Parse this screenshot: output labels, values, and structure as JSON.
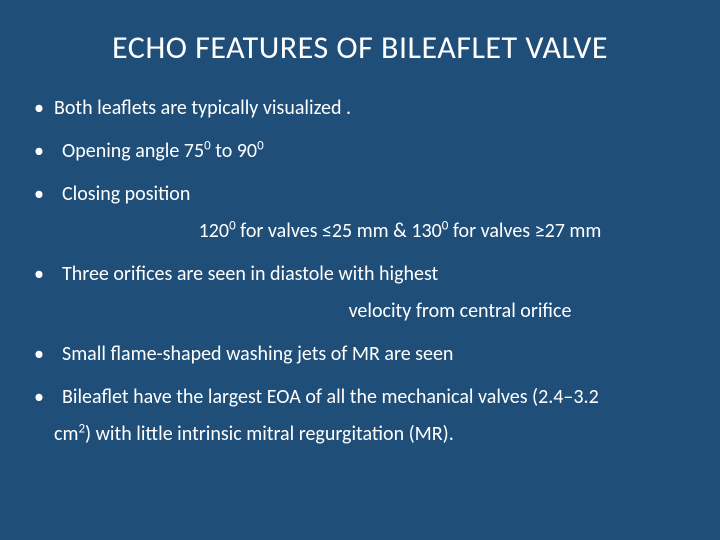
{
  "slide": {
    "background_color": "#1f4e79",
    "text_color": "#ffffff",
    "title": "ECHO FEATURES OF BILEAFLET VALVE",
    "title_fontsize": 32,
    "body_fontsize": 20,
    "bullets": {
      "b1": "Both leaflets are typically visualized .",
      "b2_pre": "Opening angle  75",
      "b2_sup1": "0",
      "b2_mid": " to 90",
      "b2_sup2": "0",
      "b3": "Closing position",
      "b3_sub_pre": "120",
      "b3_sub_sup1": "0",
      "b3_sub_mid1": " for valves ≤25 mm & 130",
      "b3_sub_sup2": "0",
      "b3_sub_mid2": " for valves ≥27 mm",
      "b4": "Three orifices are seen in diastole with highest",
      "b4_cont": "velocity from central orifice",
      "b5": "Small  flame-shaped washing jets of MR are seen",
      "b6_pre": "Bileaflet  have the largest EOA of all the mechanical valves (2.4–3.2",
      "b6_wrap_pre": "cm",
      "b6_wrap_sup": "2",
      "b6_wrap_post": ") with little intrinsic mitral regurgitation (MR)."
    }
  }
}
